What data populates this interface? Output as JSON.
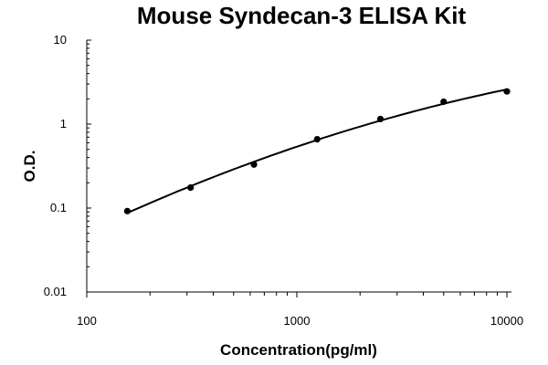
{
  "chart_data": {
    "type": "scatter",
    "title": "Mouse Syndecan-3 ELISA Kit",
    "xlabel": "Concentration(pg/ml)",
    "ylabel": "O.D.",
    "x_scale": "log",
    "y_scale": "log",
    "xlim": [
      100,
      10000
    ],
    "ylim": [
      0.01,
      10
    ],
    "x_ticks": [
      "100",
      "1000",
      "10000"
    ],
    "y_ticks": [
      "0.01",
      "0.1",
      "1",
      "10"
    ],
    "grid": false,
    "legend": "none",
    "series": [
      {
        "x": [
          156,
          312,
          625,
          1250,
          2500,
          5000,
          10000
        ],
        "y": [
          0.092,
          0.175,
          0.33,
          0.66,
          1.15,
          1.85,
          2.45
        ],
        "fit_line": true
      }
    ]
  }
}
